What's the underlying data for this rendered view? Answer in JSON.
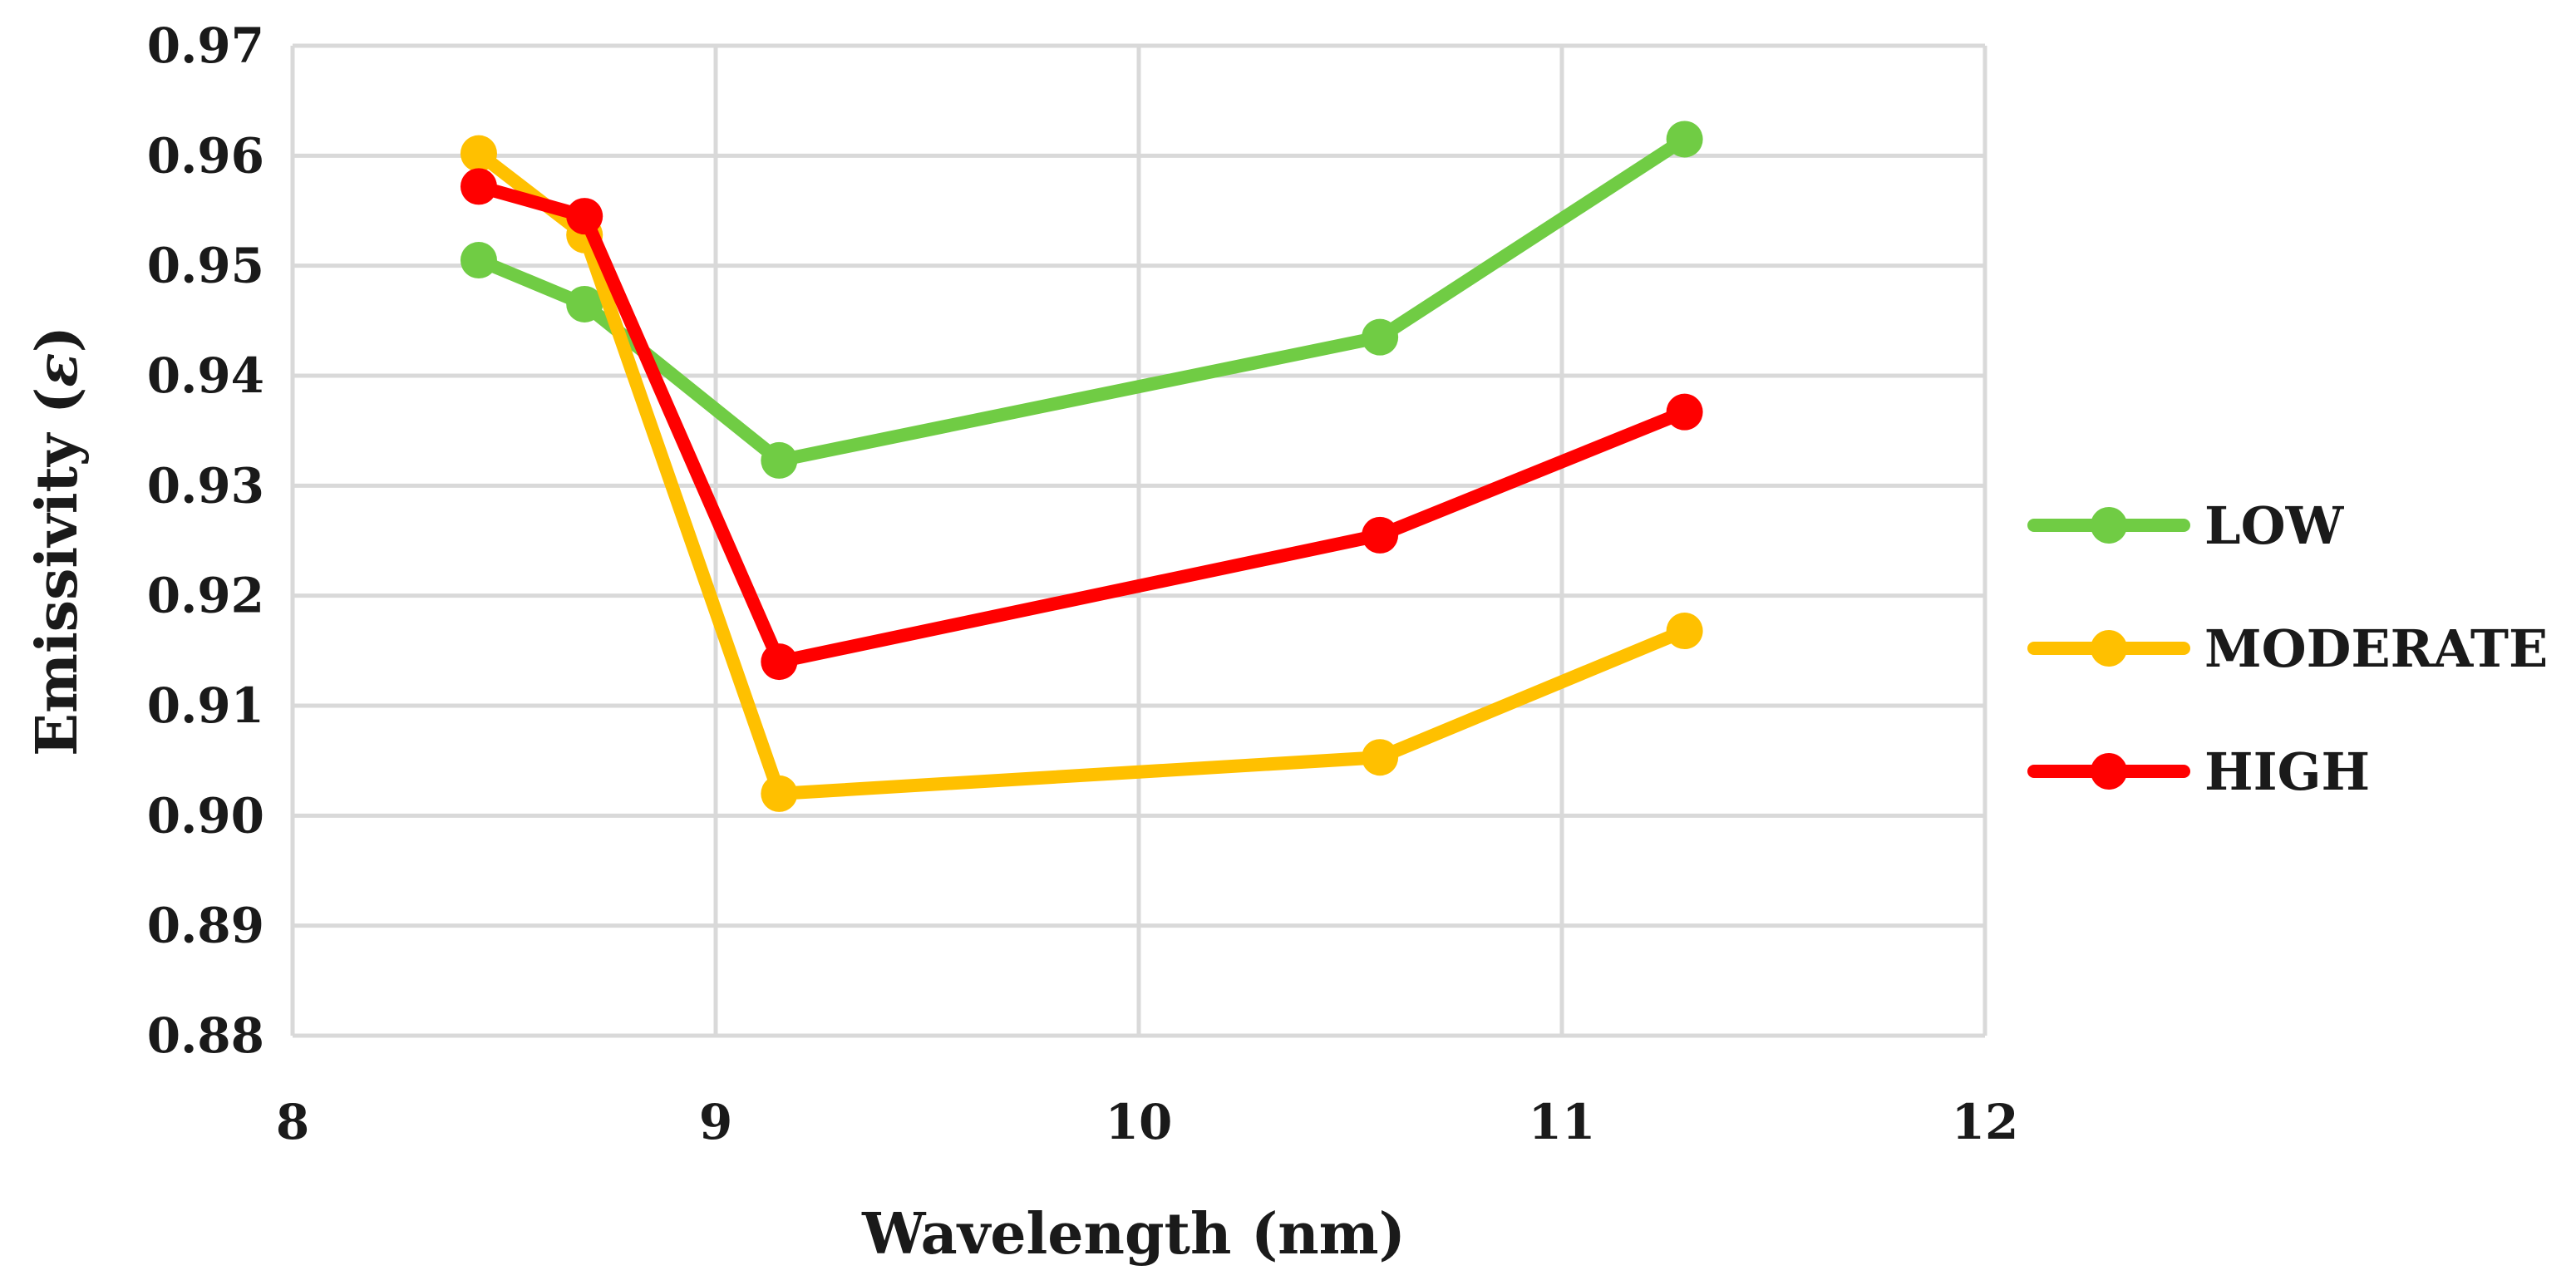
{
  "chart_data": {
    "type": "line",
    "title": "",
    "xlabel": "Wavelength (nm)",
    "ylabel_text": "Emissivity (",
    "ylabel_symbol": "ε",
    "ylabel_close": ")",
    "xlim": [
      8,
      12
    ],
    "ylim": [
      0.88,
      0.97
    ],
    "xticks": [
      "8",
      "9",
      "10",
      "11",
      "12"
    ],
    "yticks": [
      "0.88",
      "0.89",
      "0.90",
      "0.91",
      "0.92",
      "0.93",
      "0.94",
      "0.95",
      "0.96",
      "0.97"
    ],
    "grid": true,
    "legend_position": "right",
    "x": [
      8.44,
      8.69,
      9.15,
      10.57,
      11.29
    ],
    "series": [
      {
        "name": "LOW",
        "color": "#70cc44",
        "values": [
          0.9505,
          0.9465,
          0.9323,
          0.9435,
          0.9615
        ]
      },
      {
        "name": "MODERATE",
        "color": "#ffc000",
        "values": [
          0.9602,
          0.9528,
          0.902,
          0.9053,
          0.9168
        ]
      },
      {
        "name": "HIGH",
        "color": "#ff0000",
        "values": [
          0.9572,
          0.9545,
          0.914,
          0.9255,
          0.9367
        ]
      }
    ]
  }
}
